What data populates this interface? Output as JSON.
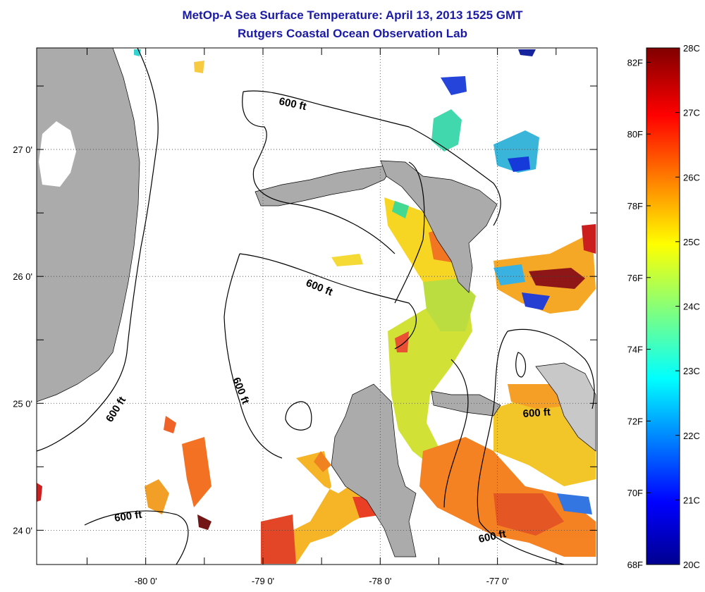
{
  "title": "MetOp-A Sea Surface Temperature:  April 13, 2013 1525 GMT",
  "subtitle": "Rutgers Coastal Ocean Observation Lab",
  "x_ticks": [
    {
      "lon": -80,
      "label": "-80 0'"
    },
    {
      "lon": -79,
      "label": "-79 0'"
    },
    {
      "lon": -78,
      "label": "-78 0'"
    },
    {
      "lon": -77,
      "label": "-77 0'"
    }
  ],
  "y_ticks": [
    {
      "lat": 27,
      "label": "27 0'"
    },
    {
      "lat": 26,
      "label": "26 0'"
    },
    {
      "lat": 25,
      "label": "25 0'"
    },
    {
      "lat": 24,
      "label": "24 0'"
    }
  ],
  "contour_labels": [
    "600 ft",
    "600 ft",
    "600 ft",
    "600 ft",
    "600 ft",
    "600 ft"
  ],
  "colorbar": {
    "celsius_labels": [
      "28C",
      "27C",
      "26C",
      "25C",
      "24C",
      "23C",
      "22C",
      "21C",
      "20C"
    ],
    "fahrenheit_labels": [
      "82F",
      "80F",
      "78F",
      "76F",
      "74F",
      "72F",
      "70F",
      "68F"
    ],
    "colormap": "jet",
    "range_c": [
      20,
      28
    ]
  },
  "colors": {
    "land": "#ababab",
    "title": "#1a1aa6"
  }
}
